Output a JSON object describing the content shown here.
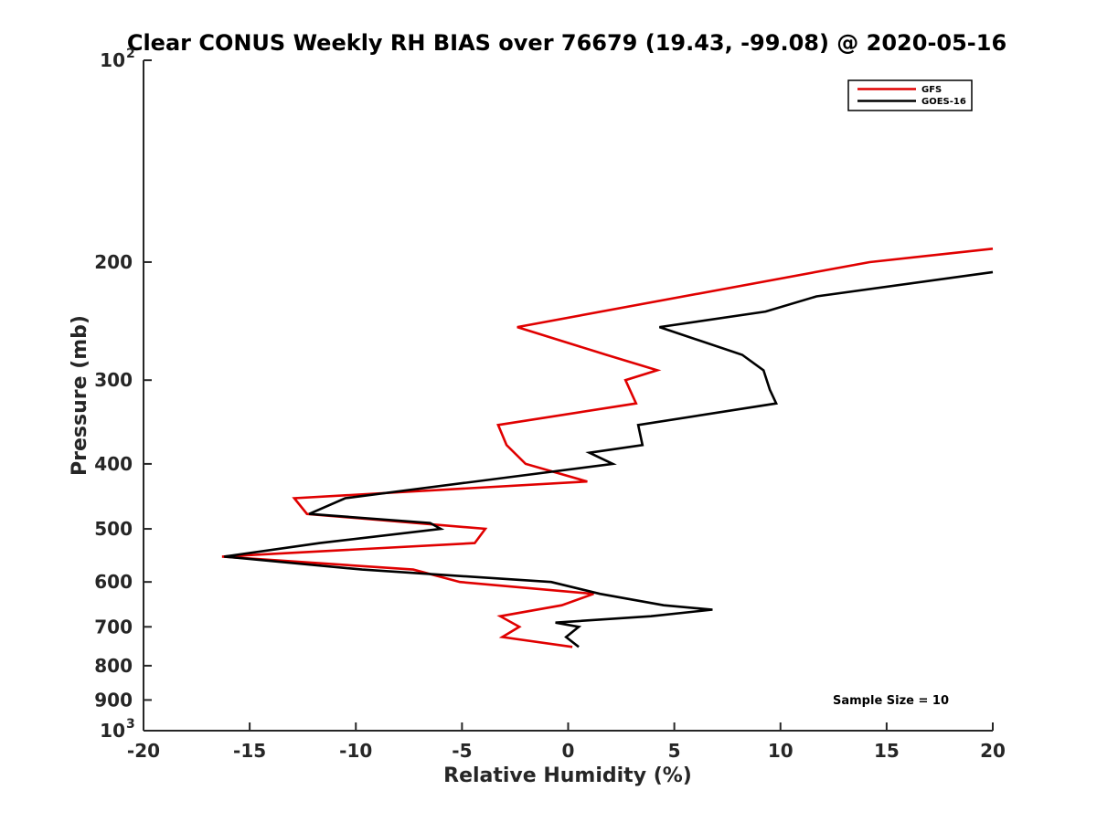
{
  "chart_data": {
    "type": "line",
    "title": "Clear CONUS Weekly RH BIAS over 76679 (19.43, -99.08) @ 2020-05-16",
    "xlabel": "Relative Humidity (%)",
    "ylabel": "Pressure (mb)",
    "xlim": [
      -20,
      20
    ],
    "ylim": [
      100,
      1000
    ],
    "yscale": "log",
    "y_reversed": true,
    "grid": false,
    "legend_position": "top-right",
    "x_ticks": [
      "-20",
      "-15",
      "-10",
      "-5",
      "0",
      "5",
      "10",
      "15",
      "20"
    ],
    "y_ticks": [
      {
        "value": 100,
        "base": "10",
        "exp": "2"
      },
      {
        "value": 200,
        "label": "200"
      },
      {
        "value": 300,
        "label": "300"
      },
      {
        "value": 400,
        "label": "400"
      },
      {
        "value": 500,
        "label": "500"
      },
      {
        "value": 600,
        "label": "600"
      },
      {
        "value": 700,
        "label": "700"
      },
      {
        "value": 800,
        "label": "800"
      },
      {
        "value": 900,
        "label": "900"
      },
      {
        "value": 1000,
        "base": "10",
        "exp": "3"
      }
    ],
    "series": [
      {
        "name": "GFS",
        "color": "#e00000",
        "points": [
          [
            20,
            191
          ],
          [
            14.2,
            200
          ],
          [
            -2.4,
            250
          ],
          [
            1.8,
            275
          ],
          [
            4.2,
            290
          ],
          [
            2.7,
            300
          ],
          [
            3.2,
            325
          ],
          [
            -3.3,
            350
          ],
          [
            -2.9,
            375
          ],
          [
            -2.0,
            400
          ],
          [
            0.9,
            425
          ],
          [
            -12.9,
            450
          ],
          [
            -12.3,
            475
          ],
          [
            -3.9,
            500
          ],
          [
            -4.4,
            525
          ],
          [
            -16.3,
            550
          ],
          [
            -7.3,
            575
          ],
          [
            -5.1,
            600
          ],
          [
            1.2,
            625
          ],
          [
            -0.3,
            650
          ],
          [
            -3.2,
            675
          ],
          [
            -2.3,
            700
          ],
          [
            -3.1,
            725
          ],
          [
            0.2,
            750
          ]
        ]
      },
      {
        "name": "GOES-16",
        "color": "#000000",
        "points": [
          [
            20,
            207
          ],
          [
            11.7,
            225
          ],
          [
            9.3,
            237
          ],
          [
            4.3,
            250
          ],
          [
            8.2,
            275
          ],
          [
            9.2,
            290
          ],
          [
            9.5,
            310
          ],
          [
            9.8,
            325
          ],
          [
            3.3,
            350
          ],
          [
            3.5,
            375
          ],
          [
            1.0,
            385
          ],
          [
            2.1,
            400
          ],
          [
            -10.5,
            450
          ],
          [
            -12.2,
            475
          ],
          [
            -6.5,
            490
          ],
          [
            -6.0,
            500
          ],
          [
            -11.7,
            525
          ],
          [
            -16.2,
            550
          ],
          [
            -9.7,
            575
          ],
          [
            -0.8,
            600
          ],
          [
            1.5,
            625
          ],
          [
            4.5,
            650
          ],
          [
            6.8,
            660
          ],
          [
            3.9,
            675
          ],
          [
            -0.6,
            690
          ],
          [
            0.5,
            700
          ],
          [
            -0.1,
            725
          ],
          [
            0.5,
            750
          ]
        ]
      }
    ],
    "annotations": [
      "Sample Size = 10"
    ]
  }
}
